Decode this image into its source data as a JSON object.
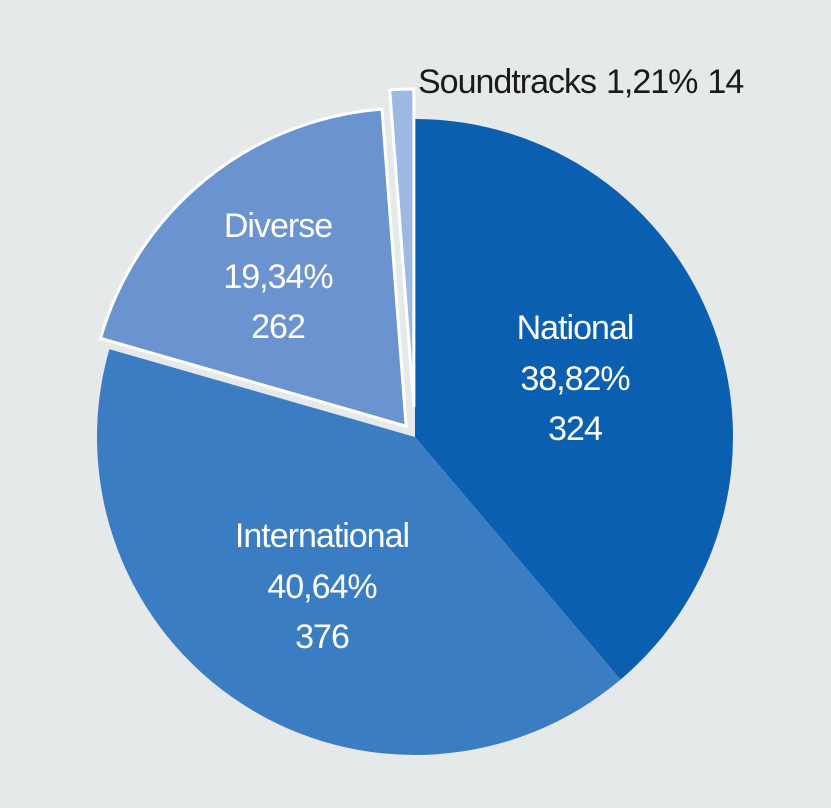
{
  "chart_data": {
    "type": "pie",
    "categories": [
      "National",
      "International",
      "Diverse",
      "Soundtracks"
    ],
    "values": [
      38.82,
      40.64,
      19.34,
      1.21
    ],
    "value_labels": [
      "38,82%",
      "40,64%",
      "19,34%",
      "1,21%"
    ],
    "counts": [
      324,
      376,
      262,
      14
    ],
    "colors": [
      "#0a5fb0",
      "#3b7dc3",
      "#6b93cf",
      "#9db8e1"
    ]
  }
}
